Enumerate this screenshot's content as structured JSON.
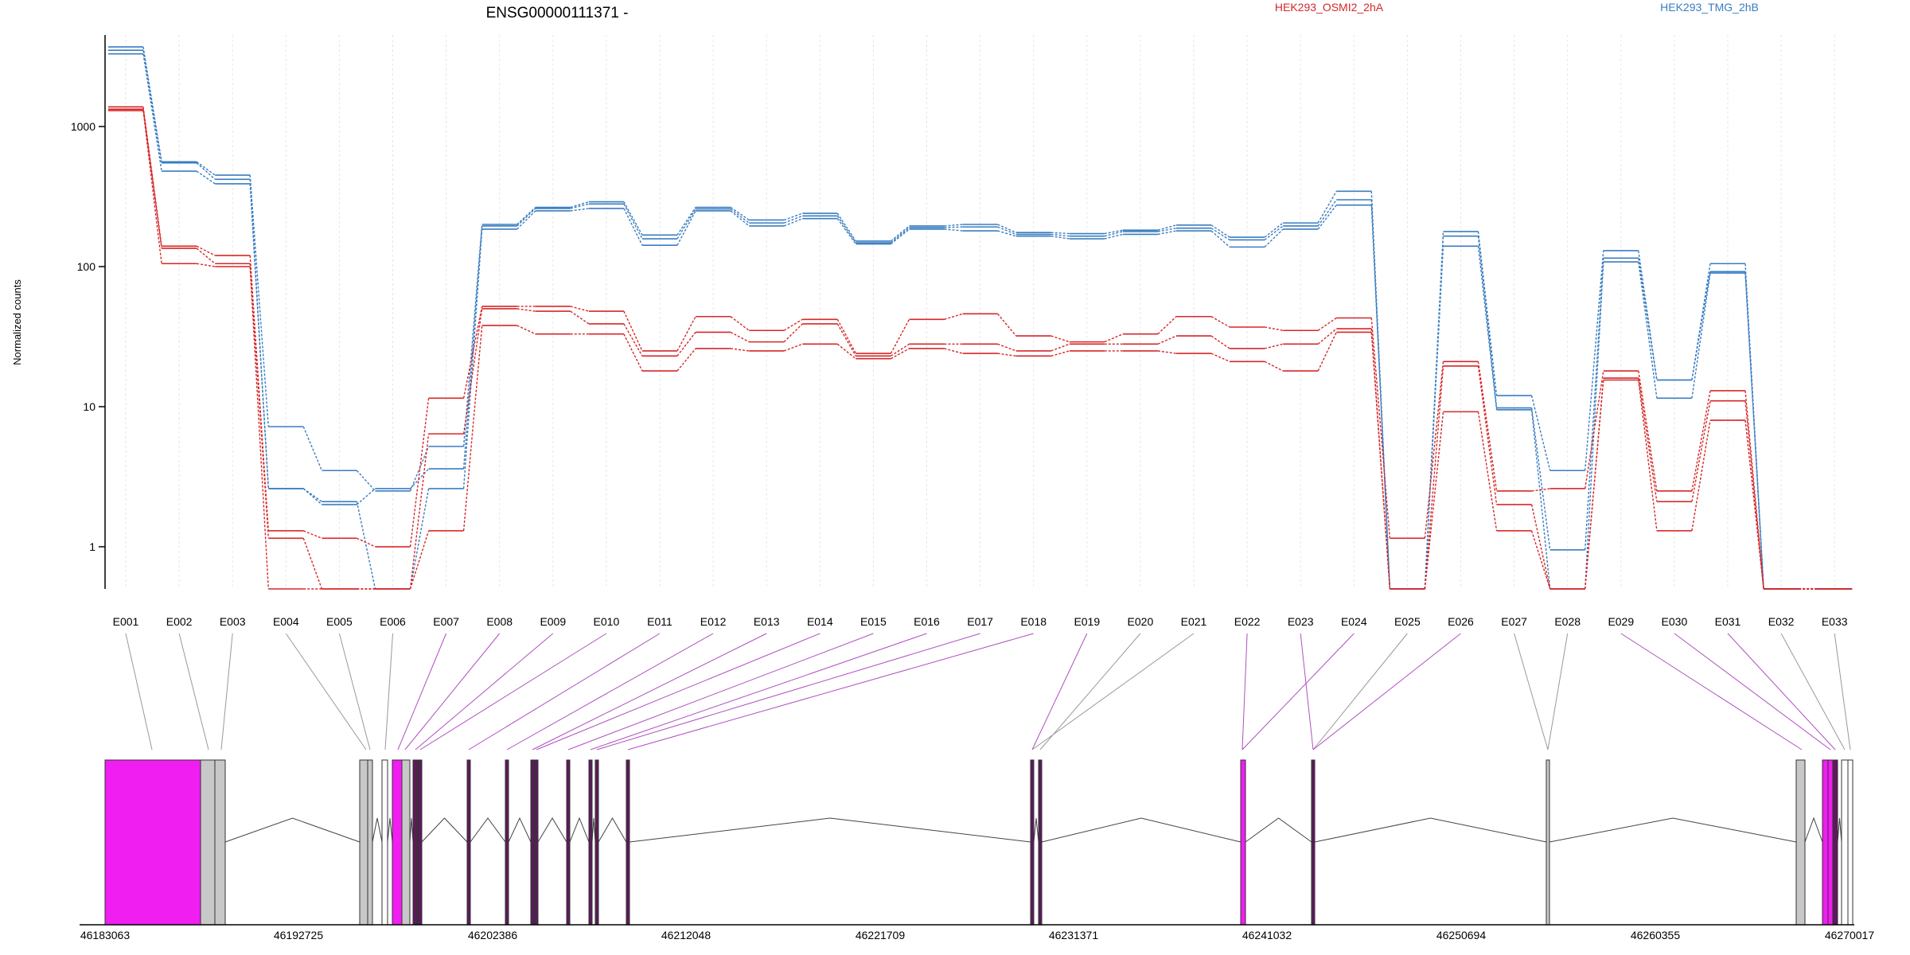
{
  "title": "ENSG00000111371 -",
  "legend": [
    {
      "label": "HEK293_OSMI2_2hA",
      "color": "#d62728"
    },
    {
      "label": "HEK293_TMG_2hB",
      "color": "#3a7dc0"
    }
  ],
  "ylabel": "Normalized counts",
  "colors": {
    "red": "#d62728",
    "blue": "#3a7dc0",
    "gene_link": "#b04fc0",
    "gray_link": "#999999",
    "exon_magenta": "#f01ef0",
    "exon_gray": "#c8c8c8",
    "exon_dark": "#5b1a5b",
    "intron": "#444444"
  },
  "chart_data": {
    "type": "line",
    "y_scale": "log",
    "y_ticks": [
      1,
      10,
      100,
      1000
    ],
    "ylim": [
      0.5,
      4500
    ],
    "categories": [
      "E001",
      "E002",
      "E003",
      "E004",
      "E005",
      "E006",
      "E007",
      "E008",
      "E009",
      "E010",
      "E011",
      "E012",
      "E013",
      "E014",
      "E015",
      "E016",
      "E017",
      "E018",
      "E019",
      "E020",
      "E021",
      "E022",
      "E023",
      "E024",
      "E025",
      "E026",
      "E027",
      "E028",
      "E029",
      "E030",
      "E031",
      "E032",
      "E033"
    ],
    "series": [
      {
        "group": "blue",
        "values": [
          3700,
          560,
          450,
          7.2,
          3.5,
          2.5,
          5.2,
          200,
          265,
          290,
          168,
          265,
          215,
          240,
          152,
          195,
          200,
          175,
          172,
          182,
          198,
          162,
          205,
          345,
          0.5,
          178,
          12,
          3.5,
          130,
          15.5,
          105,
          0.5,
          0.5
        ]
      },
      {
        "group": "blue",
        "values": [
          3500,
          550,
          420,
          2.6,
          2.0,
          2.6,
          3.6,
          195,
          260,
          280,
          158,
          258,
          205,
          230,
          148,
          190,
          192,
          170,
          165,
          178,
          188,
          155,
          195,
          300,
          0.5,
          165,
          9.8,
          0.95,
          115,
          15.5,
          92,
          0.5,
          0.5
        ]
      },
      {
        "group": "blue",
        "values": [
          3300,
          480,
          390,
          2.6,
          2.1,
          0.5,
          2.6,
          185,
          250,
          260,
          142,
          250,
          195,
          220,
          145,
          185,
          180,
          165,
          158,
          170,
          180,
          138,
          185,
          275,
          0.5,
          140,
          9.5,
          0.5,
          108,
          11.5,
          90,
          0.5,
          0.5
        ]
      },
      {
        "group": "red",
        "values": [
          1380,
          140,
          120,
          1.3,
          1.15,
          1.0,
          11.5,
          52,
          52,
          48,
          25,
          44,
          35,
          42,
          24,
          42,
          46,
          32,
          29,
          33,
          44,
          37,
          35,
          43,
          1.15,
          21,
          2.5,
          2.6,
          18,
          2.5,
          13,
          0.5,
          0.5
        ]
      },
      {
        "group": "red",
        "values": [
          1330,
          135,
          105,
          1.15,
          0.5,
          0.5,
          6.4,
          50,
          48,
          39,
          23,
          34,
          29,
          39,
          23,
          28,
          28,
          25,
          28,
          28,
          32,
          26,
          28,
          36,
          0.5,
          19.5,
          2.0,
          0.5,
          16,
          2.1,
          11,
          0.5,
          0.5
        ]
      },
      {
        "group": "red",
        "values": [
          1300,
          105,
          100,
          0.5,
          0.5,
          0.5,
          1.3,
          38,
          33,
          33,
          18,
          26,
          25,
          28,
          22,
          26,
          24,
          23,
          25,
          25,
          24,
          21,
          18,
          34,
          0.5,
          9.2,
          1.3,
          0.5,
          15.5,
          1.3,
          8,
          0.5,
          0.5
        ]
      }
    ]
  },
  "gene_model": {
    "axis_labels": [
      "46183063",
      "46192725",
      "46202386",
      "46212048",
      "46221709",
      "46231371",
      "46241032",
      "46250694",
      "46260355",
      "46270017"
    ]
  }
}
